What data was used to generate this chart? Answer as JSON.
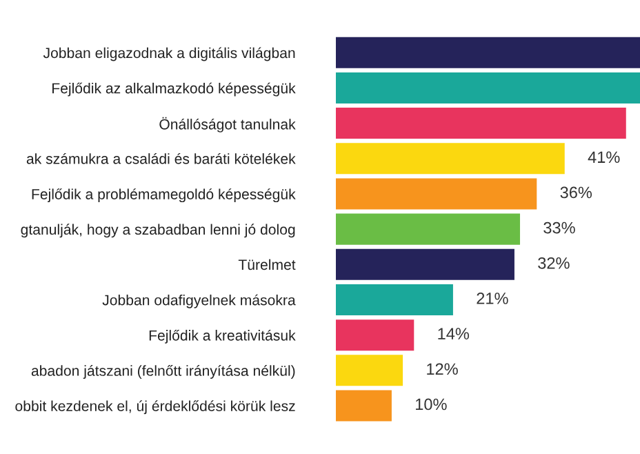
{
  "chart_data": {
    "type": "bar",
    "orientation": "horizontal",
    "categories": [
      "Jobban eligazodnak a digitális világban",
      "Fejlődik az alkalmazkodó képességük",
      "Önállóságot tanulnak",
      "ak számukra a családi és baráti kötelékek",
      "Fejlődik a problémamegoldó képességük",
      "gtanulják, hogy a szabadban lenni jó dolog",
      "Türelmet",
      "Jobban odafigyelnek másokra",
      "Fejlődik a kreativitásuk",
      "abadon játszani (felnőtt irányítása nélkül)",
      "obbit kezdenek el, új érdeklődési körük lesz"
    ],
    "values": [
      54.5,
      54.5,
      52,
      41,
      36,
      33,
      32,
      21,
      14,
      12,
      10
    ],
    "value_labels": [
      null,
      null,
      null,
      "41%",
      "36%",
      "33%",
      "32%",
      "21%",
      "14%",
      "12%",
      "10%"
    ],
    "colors": [
      "#25235a",
      "#1aa89a",
      "#e8345e",
      "#fbd80f",
      "#f7941d",
      "#6abd45",
      "#25235a",
      "#1aa89a",
      "#e8345e",
      "#fbd80f",
      "#f7941d"
    ],
    "xlim": [
      0,
      54.5
    ],
    "tick_labels": "y",
    "grid": false,
    "legend": false
  }
}
